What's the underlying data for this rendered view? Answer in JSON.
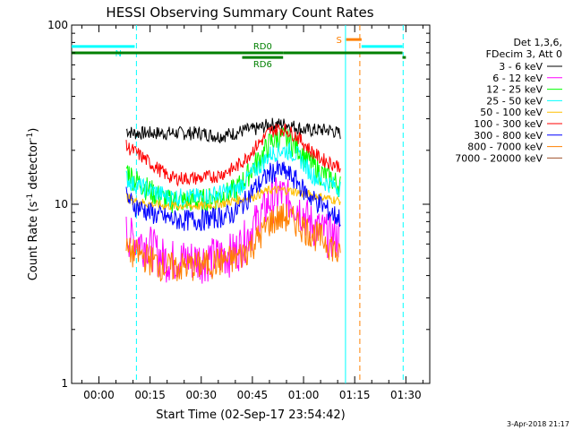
{
  "chart_data": {
    "type": "line",
    "title": "HESSI Observing Summary Count Rates",
    "xlabel": "Start Time (02-Sep-17 23:54:42)",
    "ylabel_main": "Count Rate (s",
    "ylabel_sup": "-1",
    "ylabel_tail": " detector",
    "ylabel_end": ")",
    "yscale": "log",
    "ylim": [
      1,
      100
    ],
    "y_ticks": [
      {
        "value": 1,
        "label": "1"
      },
      {
        "value": 10,
        "label": "10"
      },
      {
        "value": 100,
        "label": "100"
      }
    ],
    "xlim_min": [
      -8,
      97
    ],
    "x_ticks": [
      {
        "min": 0,
        "label": "00:00"
      },
      {
        "min": 15,
        "label": "00:15"
      },
      {
        "min": 30,
        "label": "00:30"
      },
      {
        "min": 45,
        "label": "00:45"
      },
      {
        "min": 60,
        "label": "01:00"
      },
      {
        "min": 75,
        "label": "01:15"
      },
      {
        "min": 90,
        "label": "01:30"
      }
    ],
    "legend_header": [
      "Det 1,3,6,",
      "FDecim 3, Att 0"
    ],
    "series": [
      {
        "name": "3 - 6 keV",
        "color": "#000000",
        "x_min": [
          8,
          10,
          15,
          20,
          25,
          30,
          35,
          40,
          43,
          45,
          48,
          50,
          53,
          55,
          58,
          60,
          62,
          65,
          68,
          70,
          71
        ],
        "values": [
          26,
          25,
          25,
          25,
          25,
          25,
          24,
          25,
          26,
          26,
          27,
          28,
          28,
          28,
          27,
          26,
          26,
          26,
          26,
          25,
          25
        ]
      },
      {
        "name": "6 - 12 keV",
        "color": "#ff00ff",
        "x_min": [
          8,
          10,
          15,
          18,
          20,
          22,
          25,
          30,
          35,
          40,
          43,
          45,
          48,
          50,
          53,
          55,
          58,
          60,
          62,
          65,
          68,
          70,
          71
        ],
        "values": [
          7,
          6.5,
          6,
          5.2,
          5,
          5,
          5,
          5,
          5.2,
          5.5,
          6.5,
          7.5,
          9,
          10.5,
          11.5,
          11,
          10,
          9,
          8,
          7.2,
          6.8,
          6.5,
          6.5
        ]
      },
      {
        "name": "12 - 25 keV",
        "color": "#00ff00",
        "x_min": [
          8,
          10,
          15,
          18,
          20,
          22,
          25,
          30,
          35,
          40,
          43,
          45,
          48,
          50,
          53,
          55,
          58,
          60,
          62,
          65,
          68,
          70,
          71
        ],
        "values": [
          16,
          14,
          12,
          11,
          10.5,
          10.5,
          10.5,
          10.5,
          11,
          12,
          14,
          16,
          19,
          22,
          24,
          23,
          21,
          19,
          17,
          15,
          14,
          13,
          13
        ]
      },
      {
        "name": "25 - 50 keV",
        "color": "#00ffff",
        "x_min": [
          8,
          10,
          15,
          18,
          20,
          22,
          25,
          30,
          35,
          40,
          43,
          45,
          48,
          50,
          53,
          55,
          58,
          60,
          62,
          65,
          68,
          70,
          71
        ],
        "values": [
          14,
          13,
          12,
          11.5,
          11,
          11,
          11,
          11,
          11.5,
          12,
          13.5,
          15,
          17,
          19,
          20,
          20,
          19,
          17,
          15,
          13.5,
          13,
          12.5,
          12.5
        ]
      },
      {
        "name": "50 - 100 keV",
        "color": "#ffbf00",
        "x_min": [
          8,
          10,
          15,
          20,
          25,
          30,
          35,
          40,
          45,
          50,
          55,
          60,
          65,
          70,
          71
        ],
        "values": [
          11,
          10.5,
          10,
          9.8,
          9.8,
          9.8,
          10,
          10.5,
          11,
          12,
          12,
          11.5,
          11,
          10.5,
          10.5
        ]
      },
      {
        "name": "100 - 300 keV",
        "color": "#ff0000",
        "x_min": [
          8,
          10,
          15,
          18,
          20,
          22,
          25,
          30,
          35,
          40,
          43,
          45,
          48,
          50,
          53,
          55,
          58,
          60,
          62,
          65,
          68,
          70,
          71
        ],
        "values": [
          21,
          20,
          17,
          15.5,
          14.5,
          14,
          14,
          14,
          14.5,
          16,
          18,
          20,
          23,
          25.5,
          26.5,
          26,
          24,
          22,
          20,
          18,
          17,
          16.5,
          16.5
        ]
      },
      {
        "name": "300 - 800 keV",
        "color": "#0000ff",
        "x_min": [
          8,
          10,
          15,
          18,
          20,
          22,
          25,
          30,
          35,
          40,
          43,
          45,
          48,
          50,
          53,
          55,
          58,
          60,
          62,
          65,
          68,
          70,
          71
        ],
        "values": [
          11,
          10,
          9,
          8.6,
          8.4,
          8.2,
          8.2,
          8.2,
          8.5,
          9,
          10.5,
          12,
          13.5,
          15,
          15.5,
          15,
          13.5,
          12,
          11,
          10,
          9,
          8.5,
          8.5
        ]
      },
      {
        "name": "800 - 7000 keV",
        "color": "#ff8000",
        "x_min": [
          8,
          10,
          15,
          18,
          20,
          22,
          25,
          30,
          35,
          40,
          43,
          45,
          48,
          50,
          53,
          55,
          58,
          60,
          62,
          65,
          68,
          70,
          71
        ],
        "values": [
          5.5,
          5.4,
          5,
          4.6,
          4.5,
          4.5,
          4.5,
          4.6,
          4.8,
          5,
          5.5,
          6,
          7,
          8,
          8.5,
          8.5,
          8,
          7.5,
          7,
          6.5,
          6,
          5.2,
          5
        ]
      },
      {
        "name": "7000 - 20000 keV",
        "color": "#a0522d",
        "x_min": [],
        "values": []
      }
    ],
    "ranges": [
      {
        "label": "N",
        "color": "#00ffff",
        "start_min": -8,
        "end_min": 10.5,
        "level": 76
      },
      {
        "label": "S",
        "color": "#ff8000",
        "start_min": 72.5,
        "end_min": 77,
        "level": 83
      },
      {
        "label": "",
        "color": "#00ffff",
        "start_min": 77,
        "end_min": 89,
        "level": 76
      },
      {
        "label": "",
        "color": "#008000",
        "start_min": -8,
        "end_min": 42,
        "level": 70
      },
      {
        "label": "RD0",
        "color": "#008000",
        "start_min": 42,
        "end_min": 54,
        "level": 70
      },
      {
        "label": "RD6",
        "color": "#008000",
        "start_min": 42,
        "end_min": 54,
        "level": 66
      },
      {
        "label": "",
        "color": "#008000",
        "start_min": 54,
        "end_min": 89,
        "level": 70
      },
      {
        "label": "",
        "color": "#008000",
        "start_min": 89,
        "end_min": 90,
        "level": 66
      }
    ],
    "vlines": [
      {
        "min": 11,
        "color": "#00ffff",
        "dash": true
      },
      {
        "min": 72.3,
        "color": "#00ffff",
        "dash": false
      },
      {
        "min": 76.5,
        "color": "#ff8000",
        "dash": true
      },
      {
        "min": 89.2,
        "color": "#00ffff",
        "dash": true
      }
    ],
    "stamp": "3-Apr-2018 21:17"
  }
}
